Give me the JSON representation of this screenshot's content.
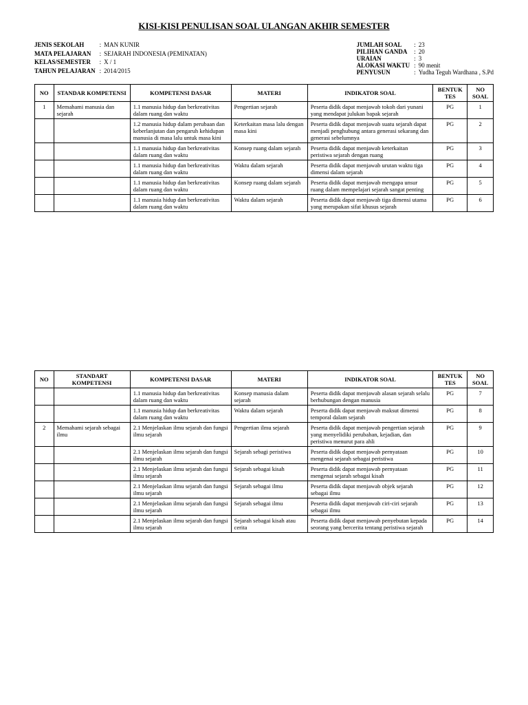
{
  "title": "KISI-KISI PENULISAN SOAL ULANGAN AKHIR SEMESTER",
  "meta_left": [
    {
      "label": "JENIS SEKOLAH",
      "value": "MAN KUNIR"
    },
    {
      "label": "MATA PELAJARAN",
      "value": "SEJARAH INDONESIA (PEMINATAN)"
    },
    {
      "label": "KELAS/SEMESTER",
      "value": "X / 1"
    },
    {
      "label": "TAHUN PELAJARAN",
      "value": "2014/2015"
    }
  ],
  "meta_right": [
    {
      "label": "JUMLAH SOAL",
      "value": "23"
    },
    {
      "label": "PILIHAN GANDA",
      "value": "20"
    },
    {
      "label": "URAIAN",
      "value": "3"
    },
    {
      "label": "ALOKASI WAKTU",
      "value": "90 menit"
    },
    {
      "label": "PENYUSUN",
      "value": "Yudha Teguh Wardhana , S.Pd"
    }
  ],
  "headers": {
    "no": "NO",
    "std": "STANDAR KOMPETENSI",
    "kd": "KOMPETENSI DASAR",
    "mat": "MATERI",
    "ind": "INDIKATOR SOAL",
    "bt": "BENTUK TES",
    "ns": "NO SOAL",
    "std2": "STANDART KOMPETENSI"
  },
  "table1": [
    {
      "no": "1",
      "std": "Memahami manusia dan sejarah",
      "kd": "1.1 manusia hidup dan berkreativitas dalam ruang dan waktu",
      "mat": "Pengertian sejarah",
      "ind": "Peserta didik dapat menjawab tokoh dari yunani yang mendapat julukan bapak sejarah",
      "bt": "PG",
      "ns": "1"
    },
    {
      "no": "",
      "std": "",
      "kd": "1.2 manusia hidup dalam perubaan dan keberlanjutan dan pengaruh kehidupan manusia di masa lalu untuk masa kini",
      "mat": "Keterkaitan masa lalu dengan masa kini",
      "ind": "Peserta didik dapat menjawab suatu sejarah dapat menjadi penghubung antara generasi sekarang dan generasi sebelumnya",
      "bt": "PG",
      "ns": "2"
    },
    {
      "no": "",
      "std": "",
      "kd": "1.1 manusia hidup dan berkreativitas dalam ruang dan waktu",
      "mat": "Konsep ruang dalam sejarah",
      "ind": "Peserta didik dapat menjawab keterkaitan peristiwa sejarah dengan ruang",
      "bt": "PG",
      "ns": "3"
    },
    {
      "no": "",
      "std": "",
      "kd": "1.1 manusia hidup dan berkreativitas dalam ruang dan waktu",
      "mat": "Waktu dalam sejarah",
      "ind": "Peserta didik dapat menjawab urutan waktu tiga dimensi dalam sejarah",
      "bt": "PG",
      "ns": "4"
    },
    {
      "no": "",
      "std": "",
      "kd": "1.1 manusia hidup dan berkreativitas dalam ruang dan waktu",
      "mat": "Konsep ruang dalam sejarah",
      "ind": "Peserta didik dapat menjawab mengapa unsur ruang dalam mempelajari sejarah sangat penting",
      "bt": "PG",
      "ns": "5"
    },
    {
      "no": "",
      "std": "",
      "kd": "1.1 manusia hidup dan berkreativitas dalam ruang dan waktu",
      "mat": "Waktu dalam sejarah",
      "ind": "Peserta didik dapat menjawab tiga dimensi utama yang merupakan sifat khusus sejarah",
      "bt": "PG",
      "ns": "6"
    }
  ],
  "table2": [
    {
      "no": "",
      "std": "",
      "kd": "1.1 manusia hidup dan berkreativitas dalam ruang dan waktu",
      "mat": "Konsep manusia dalam sejarah",
      "ind": "Peserta didik dapat menjawab alasan sejarah selalu berhubungan dengan manusia",
      "bt": "PG",
      "ns": "7"
    },
    {
      "no": "",
      "std": "",
      "kd": "1.1 manusia hidup dan berkreativitas dalam ruang dan waktu",
      "mat": "Waktu dalam sejarah",
      "ind": "Peserta didik dapat menjawab maksut dimensi temporal dalam sejarah",
      "bt": "PG",
      "ns": "8"
    },
    {
      "no": "2",
      "std": "Memahami sejarah sebagai ilmu",
      "kd": "2.1 Menjelaskan ilmu sejarah dan fungsi ilmu sejarah",
      "mat": "Pengertian ilmu sejarah",
      "ind": "Peserta didik dapat menjawab pengertian sejarah yang menyelidiki perubahan, kejadian, dan peristiwa menurut para ahli",
      "bt": "PG",
      "ns": "9"
    },
    {
      "no": "",
      "std": "",
      "kd": "2.1 Menjelaskan ilmu sejarah dan fungsi ilmu sejarah",
      "mat": "Sejarah sebagi peristiwa",
      "ind": "Peserta didik dapat menjawab pernyataan mengenai sejarah sebagai peristiwa",
      "bt": "PG",
      "ns": "10"
    },
    {
      "no": "",
      "std": "",
      "kd": "2.1 Menjelaskan ilmu sejarah dan fungsi ilmu sejarah",
      "mat": "Sejarah sebagai kisah",
      "ind": "Peserta didik dapat menjawab pernyataan mengenai sejarah sebagai kisah",
      "bt": "PG",
      "ns": "11"
    },
    {
      "no": "",
      "std": "",
      "kd": "2.1 Menjelaskan ilmu sejarah dan fungsi ilmu sejarah",
      "mat": "Sejarah sebagai ilmu",
      "ind": "Peserta didik dapat menjawab objek sejarah sebagai ilmu",
      "bt": "PG",
      "ns": "12"
    },
    {
      "no": "",
      "std": "",
      "kd": "2.1 Menjelaskan ilmu sejarah dan fungsi ilmu sejarah",
      "mat": "Sejarah sebagai ilmu",
      "ind": "Peserta didik dapat menjawab ciri-ciri sejarah sebagai ilmu",
      "bt": "PG",
      "ns": "13"
    },
    {
      "no": "",
      "std": "",
      "kd": "2.1 Menjelaskan ilmu sejarah dan fungsi ilmu sejarah",
      "mat": "Sejarah sebagai kisah atau cerita",
      "ind": "Peserta didik dapat menjawab penyebutan kepada seorang yang bercerita tentang peristiwa sejarah",
      "bt": "PG",
      "ns": "14"
    }
  ]
}
